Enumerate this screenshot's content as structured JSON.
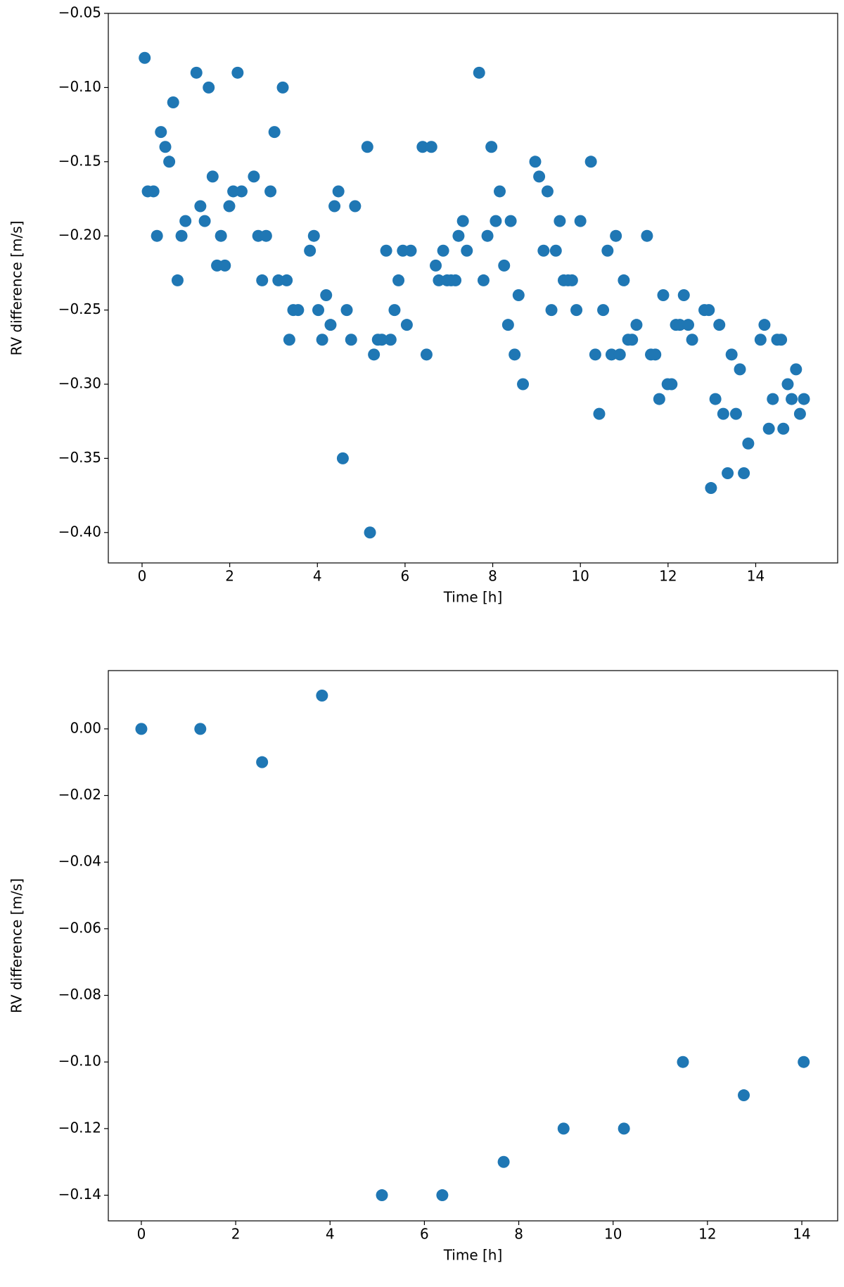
{
  "chart_data": [
    {
      "type": "scatter",
      "xlabel": "Time [h]",
      "ylabel": "RV difference [m/s]",
      "color": "#1f77b4",
      "x": [
        0.06,
        0.13,
        0.26,
        0.34,
        0.43,
        0.53,
        0.62,
        0.71,
        0.81,
        0.9,
        0.99,
        1.24,
        1.33,
        1.43,
        1.52,
        1.61,
        1.71,
        1.8,
        1.89,
        1.99,
        2.08,
        2.18,
        2.27,
        2.55,
        2.65,
        2.74,
        2.83,
        2.93,
        3.02,
        3.11,
        3.21,
        3.3,
        3.36,
        3.45,
        3.56,
        3.83,
        3.92,
        4.02,
        4.11,
        4.2,
        4.3,
        4.39,
        4.48,
        4.58,
        4.67,
        4.77,
        4.86,
        5.14,
        5.2,
        5.29,
        5.38,
        5.47,
        5.57,
        5.67,
        5.76,
        5.85,
        5.95,
        6.04,
        6.13,
        6.4,
        6.49,
        6.6,
        6.7,
        6.77,
        6.87,
        6.96,
        7.05,
        7.15,
        7.22,
        7.32,
        7.41,
        7.69,
        7.79,
        7.88,
        7.97,
        8.07,
        8.16,
        8.26,
        8.35,
        8.41,
        8.5,
        8.59,
        8.69,
        8.97,
        9.06,
        9.16,
        9.25,
        9.34,
        9.44,
        9.53,
        9.62,
        9.72,
        9.81,
        9.91,
        10.0,
        10.24,
        10.34,
        10.43,
        10.52,
        10.62,
        10.71,
        10.81,
        10.9,
        10.99,
        11.09,
        11.18,
        11.28,
        11.52,
        11.61,
        11.71,
        11.8,
        11.89,
        11.99,
        12.08,
        12.18,
        12.27,
        12.36,
        12.46,
        12.55,
        12.83,
        12.93,
        12.98,
        13.08,
        13.17,
        13.26,
        13.36,
        13.45,
        13.55,
        13.64,
        13.73,
        13.83,
        14.11,
        14.2,
        14.3,
        14.39,
        14.49,
        14.58,
        14.63,
        14.73,
        14.82,
        14.92,
        15.01,
        15.1
      ],
      "values": [
        -0.08,
        -0.17,
        -0.17,
        -0.2,
        -0.13,
        -0.14,
        -0.15,
        -0.11,
        -0.23,
        -0.2,
        -0.19,
        -0.09,
        -0.18,
        -0.19,
        -0.1,
        -0.16,
        -0.22,
        -0.2,
        -0.22,
        -0.18,
        -0.17,
        -0.09,
        -0.17,
        -0.16,
        -0.2,
        -0.23,
        -0.2,
        -0.17,
        -0.13,
        -0.23,
        -0.1,
        -0.23,
        -0.27,
        -0.25,
        -0.25,
        -0.21,
        -0.2,
        -0.25,
        -0.27,
        -0.24,
        -0.26,
        -0.18,
        -0.17,
        -0.35,
        -0.25,
        -0.27,
        -0.18,
        -0.14,
        -0.4,
        -0.28,
        -0.27,
        -0.27,
        -0.21,
        -0.27,
        -0.25,
        -0.23,
        -0.21,
        -0.26,
        -0.21,
        -0.14,
        -0.28,
        -0.14,
        -0.22,
        -0.23,
        -0.21,
        -0.23,
        -0.23,
        -0.23,
        -0.2,
        -0.19,
        -0.21,
        -0.09,
        -0.23,
        -0.2,
        -0.14,
        -0.19,
        -0.17,
        -0.22,
        -0.26,
        -0.19,
        -0.28,
        -0.24,
        -0.3,
        -0.15,
        -0.16,
        -0.21,
        -0.17,
        -0.25,
        -0.21,
        -0.19,
        -0.23,
        -0.23,
        -0.23,
        -0.25,
        -0.19,
        -0.15,
        -0.28,
        -0.32,
        -0.25,
        -0.21,
        -0.28,
        -0.2,
        -0.28,
        -0.23,
        -0.27,
        -0.27,
        -0.26,
        -0.2,
        -0.28,
        -0.28,
        -0.31,
        -0.24,
        -0.3,
        -0.3,
        -0.26,
        -0.26,
        -0.24,
        -0.26,
        -0.27,
        -0.25,
        -0.25,
        -0.37,
        -0.31,
        -0.26,
        -0.32,
        -0.36,
        -0.28,
        -0.32,
        -0.29,
        -0.36,
        -0.34,
        -0.27,
        -0.26,
        -0.33,
        -0.31,
        -0.27,
        -0.27,
        -0.33,
        -0.3,
        -0.31,
        -0.29,
        -0.32,
        -0.31
      ],
      "xlim": [
        -0.77,
        15.87
      ],
      "ylim": [
        -0.4205,
        -0.05
      ],
      "xticks": [
        0,
        2,
        4,
        6,
        8,
        10,
        12,
        14
      ],
      "yticks": [
        {
          "value": -0.4,
          "label": "−0.40"
        },
        {
          "value": -0.35,
          "label": "−0.35"
        },
        {
          "value": -0.3,
          "label": "−0.30"
        },
        {
          "value": -0.25,
          "label": "−0.25"
        },
        {
          "value": -0.2,
          "label": "−0.20"
        },
        {
          "value": -0.15,
          "label": "−0.15"
        },
        {
          "value": -0.1,
          "label": "−0.10"
        },
        {
          "value": -0.05,
          "label": "−0.05"
        }
      ]
    },
    {
      "type": "scatter",
      "xlabel": "Time [h]",
      "ylabel": "RV difference [m/s]",
      "color": "#1f77b4",
      "x": [
        0,
        1.25,
        2.56,
        3.83,
        5.1,
        6.38,
        7.68,
        8.95,
        10.23,
        11.48,
        12.77,
        14.04
      ],
      "values": [
        0,
        0,
        -0.01,
        0.01,
        -0.14,
        -0.14,
        -0.13,
        -0.12,
        -0.12,
        -0.1,
        -0.11,
        -0.1
      ],
      "xlim": [
        -0.7,
        14.76
      ],
      "ylim": [
        -0.1477,
        0.0175
      ],
      "xticks": [
        0,
        2,
        4,
        6,
        8,
        10,
        12,
        14
      ],
      "yticks": [
        {
          "value": -0.14,
          "label": "−0.14"
        },
        {
          "value": -0.12,
          "label": "−0.12"
        },
        {
          "value": -0.1,
          "label": "−0.10"
        },
        {
          "value": -0.08,
          "label": "−0.08"
        },
        {
          "value": -0.06,
          "label": "−0.06"
        },
        {
          "value": -0.04,
          "label": "−0.04"
        },
        {
          "value": -0.02,
          "label": "−0.02"
        },
        {
          "value": 0,
          "label": "0.00"
        }
      ]
    }
  ]
}
